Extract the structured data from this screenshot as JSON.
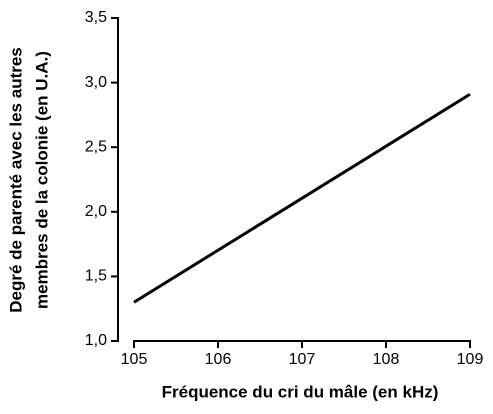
{
  "chart_data": {
    "type": "line",
    "xlabel": "Fréquence du cri du mâle (en kHz)",
    "ylabel": [
      "Degré de parenté avec les autres",
      "membres de la colonie (en U.A.)"
    ],
    "x": [
      105,
      109
    ],
    "values": [
      1.3,
      2.91
    ],
    "color": "#000000",
    "xlim": [
      105,
      109
    ],
    "xticks": [
      105,
      106,
      107,
      108,
      109
    ],
    "ylim": [
      1.0,
      3.5
    ],
    "yticks": [
      {
        "value": 1.0,
        "label": "1,0"
      },
      {
        "value": 1.5,
        "label": "1,5"
      },
      {
        "value": 2.0,
        "label": "2,0"
      },
      {
        "value": 2.5,
        "label": "2,5"
      },
      {
        "value": 3.0,
        "label": "3,0"
      },
      {
        "value": 3.5,
        "label": "3,5"
      }
    ]
  }
}
